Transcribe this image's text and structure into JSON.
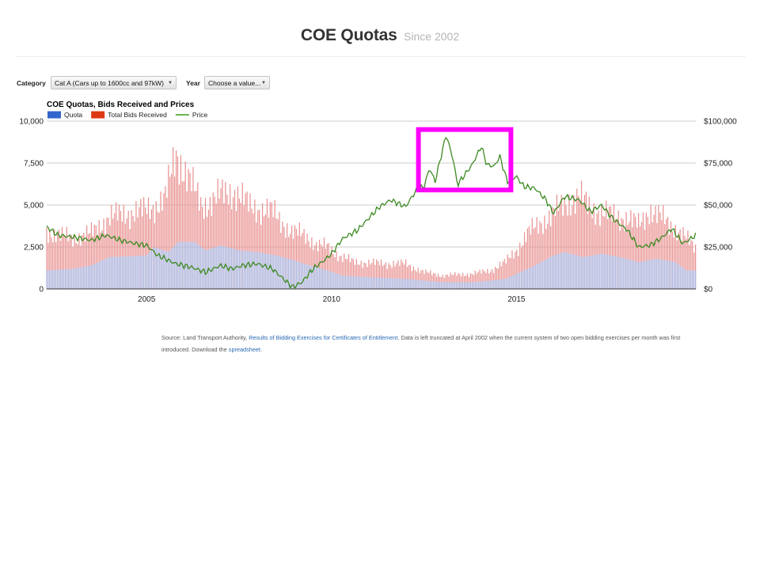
{
  "header": {
    "title": "COE Quotas",
    "subtitle": "Since 2002"
  },
  "controls": {
    "category_label": "Category",
    "category_value": "Cat A (Cars up to 1600cc and 97kW)",
    "year_label": "Year",
    "year_value": "Choose a value..."
  },
  "chart_data": {
    "type": "bar",
    "title": "COE Quotas, Bids Received and Prices",
    "legend_position": "top-left",
    "grid": true,
    "x_ticks": [
      "2005",
      "2010",
      "2015"
    ],
    "x_range": [
      2002.3,
      2019.85
    ],
    "y_left": {
      "ticks": [
        "0",
        "2,500",
        "5,000",
        "7,500",
        "10,000"
      ],
      "range": [
        0,
        10000
      ]
    },
    "y_right": {
      "ticks": [
        "$0",
        "$25,000",
        "$50,000",
        "$75,000",
        "$100,000"
      ],
      "range": [
        0,
        100000
      ]
    },
    "series": [
      {
        "name": "Quota",
        "kind": "bar",
        "color": "#3366cc",
        "points": [
          [
            2002.3,
            1100
          ],
          [
            2003,
            1200
          ],
          [
            2003.5,
            1400
          ],
          [
            2004,
            1900
          ],
          [
            2005,
            2000
          ],
          [
            2005.2,
            2500
          ],
          [
            2005.6,
            2200
          ],
          [
            2005.85,
            2800
          ],
          [
            2006.3,
            2800
          ],
          [
            2006.6,
            2300
          ],
          [
            2007,
            2600
          ],
          [
            2007.5,
            2300
          ],
          [
            2008,
            2200
          ],
          [
            2008.5,
            2000
          ],
          [
            2009,
            1700
          ],
          [
            2009.4,
            1400
          ],
          [
            2009.9,
            1100
          ],
          [
            2010.3,
            800
          ],
          [
            2011,
            700
          ],
          [
            2012,
            600
          ],
          [
            2012.5,
            500
          ],
          [
            2013,
            400
          ],
          [
            2013.8,
            400
          ],
          [
            2014.3,
            500
          ],
          [
            2014.7,
            600
          ],
          [
            2015,
            900
          ],
          [
            2015.5,
            1400
          ],
          [
            2016,
            2000
          ],
          [
            2016.3,
            2200
          ],
          [
            2016.8,
            1900
          ],
          [
            2017.3,
            2100
          ],
          [
            2017.8,
            1900
          ],
          [
            2018.3,
            1600
          ],
          [
            2018.8,
            1800
          ],
          [
            2019.3,
            1600
          ],
          [
            2019.6,
            1100
          ],
          [
            2019.85,
            1100
          ]
        ]
      },
      {
        "name": "Total Bids Received",
        "kind": "bar",
        "color": "#dc3912",
        "points": [
          [
            2002.3,
            3400
          ],
          [
            2003,
            3000
          ],
          [
            2003.5,
            3300
          ],
          [
            2004,
            4300
          ],
          [
            2004.5,
            4500
          ],
          [
            2005,
            4700
          ],
          [
            2005.2,
            4900
          ],
          [
            2005.5,
            5400
          ],
          [
            2005.8,
            8000
          ],
          [
            2006.1,
            6800
          ],
          [
            2006.5,
            4900
          ],
          [
            2007,
            5600
          ],
          [
            2007.4,
            5800
          ],
          [
            2007.8,
            4900
          ],
          [
            2008.4,
            4600
          ],
          [
            2008.9,
            3400
          ],
          [
            2009.3,
            3200
          ],
          [
            2009.6,
            2600
          ],
          [
            2009.9,
            2500
          ],
          [
            2010.2,
            2000
          ],
          [
            2010.6,
            1600
          ],
          [
            2011.5,
            1500
          ],
          [
            2012,
            1500
          ],
          [
            2012.5,
            1000
          ],
          [
            2013,
            800
          ],
          [
            2013.8,
            900
          ],
          [
            2014.3,
            1100
          ],
          [
            2014.7,
            1600
          ],
          [
            2015,
            2300
          ],
          [
            2015.3,
            3300
          ],
          [
            2015.7,
            4000
          ],
          [
            2016,
            4500
          ],
          [
            2016.4,
            5200
          ],
          [
            2016.7,
            5500
          ],
          [
            2017,
            4800
          ],
          [
            2017.5,
            4400
          ],
          [
            2018,
            4200
          ],
          [
            2018.3,
            3800
          ],
          [
            2018.6,
            4700
          ],
          [
            2019,
            4100
          ],
          [
            2019.5,
            3200
          ],
          [
            2019.85,
            2400
          ]
        ]
      },
      {
        "name": "Price",
        "kind": "line",
        "color": "#3d9a1c",
        "points": [
          [
            2002.3,
            37000
          ],
          [
            2002.6,
            32000
          ],
          [
            2003,
            31000
          ],
          [
            2003.5,
            29000
          ],
          [
            2003.9,
            32000
          ],
          [
            2004.3,
            29000
          ],
          [
            2004.7,
            27000
          ],
          [
            2005,
            26000
          ],
          [
            2005.3,
            20000
          ],
          [
            2005.8,
            15000
          ],
          [
            2006.2,
            13000
          ],
          [
            2006.6,
            10000
          ],
          [
            2007,
            14000
          ],
          [
            2007.3,
            12000
          ],
          [
            2007.6,
            14000
          ],
          [
            2008,
            15000
          ],
          [
            2008.4,
            12000
          ],
          [
            2008.7,
            6000
          ],
          [
            2008.95,
            1000
          ],
          [
            2009.2,
            4000
          ],
          [
            2009.5,
            12000
          ],
          [
            2009.8,
            17000
          ],
          [
            2010,
            21000
          ],
          [
            2010.3,
            30000
          ],
          [
            2010.7,
            35000
          ],
          [
            2011,
            42000
          ],
          [
            2011.3,
            49000
          ],
          [
            2011.6,
            53000
          ],
          [
            2012,
            49000
          ],
          [
            2012.3,
            59000
          ],
          [
            2012.5,
            61000
          ],
          [
            2012.65,
            72000
          ],
          [
            2012.8,
            64000
          ],
          [
            2013.1,
            92000
          ],
          [
            2013.3,
            76000
          ],
          [
            2013.4,
            62000
          ],
          [
            2013.8,
            74000
          ],
          [
            2014.05,
            85000
          ],
          [
            2014.2,
            74000
          ],
          [
            2014.4,
            73000
          ],
          [
            2014.55,
            79000
          ],
          [
            2014.75,
            64000
          ],
          [
            2015,
            67000
          ],
          [
            2015.2,
            61000
          ],
          [
            2015.5,
            60000
          ],
          [
            2015.8,
            53000
          ],
          [
            2016,
            45000
          ],
          [
            2016.3,
            55000
          ],
          [
            2016.7,
            53000
          ],
          [
            2017,
            46000
          ],
          [
            2017.3,
            50000
          ],
          [
            2017.6,
            42000
          ],
          [
            2018,
            35000
          ],
          [
            2018.3,
            25000
          ],
          [
            2018.6,
            26000
          ],
          [
            2018.9,
            30000
          ],
          [
            2019.2,
            36000
          ],
          [
            2019.5,
            27000
          ],
          [
            2019.85,
            32000
          ]
        ]
      }
    ]
  },
  "highlight": {
    "color": "#ff00ff",
    "x_range": [
      2012.35,
      2014.85
    ],
    "y_right_range": [
      59000,
      95000
    ]
  },
  "source": {
    "prefix": "Source: Land Transport Authority,",
    "link_text": "Results of Bidding Exercises for Certificates of Entitlement",
    "middle": ". Data is left truncated at April 2002 when the current system of two open bidding exercises per month was first introduced. Download the",
    "link2_text": "spreadsheet",
    "suffix": "."
  }
}
